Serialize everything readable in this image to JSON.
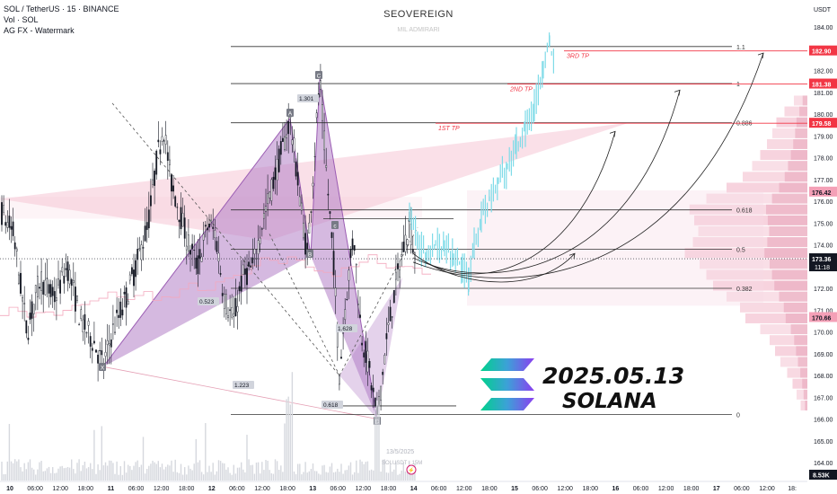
{
  "legend": {
    "symbol_line": "SOL / TetherUS · 15 · BINANCE",
    "volume_line": "Vol · SOL",
    "indicator_line": "AG FX - Watermark"
  },
  "watermark": {
    "brand": "SEOVEREIGN",
    "sub": "MIL ADMIRARI"
  },
  "overlay": {
    "date": "2025.05.13",
    "name": "SOLANA"
  },
  "colors": {
    "candle": "#131722",
    "projection": "#7fdbe8",
    "pattern_fill": "#b27fc6",
    "target_line": "#f23645",
    "profile": "#f4c4d3",
    "price_tag": "#131722"
  },
  "chart_data": {
    "type": "candlestick",
    "y_axis": {
      "unit": "USDT",
      "ticks": [
        184.0,
        183.0,
        182.0,
        181.0,
        180.0,
        179.0,
        178.0,
        177.0,
        176.0,
        175.0,
        174.0,
        173.0,
        172.0,
        171.0,
        170.0,
        169.0,
        168.0,
        167.0,
        166.0,
        165.0,
        164.0
      ],
      "range": [
        163.4,
        184.5
      ]
    },
    "x_axis": {
      "ticks": [
        "10",
        "06:00",
        "12:00",
        "18:00",
        "11",
        "06:00",
        "12:00",
        "18:00",
        "12",
        "06:00",
        "12:00",
        "18:00",
        "13",
        "06:00",
        "12:00",
        "18:00",
        "14",
        "06:00",
        "12:00",
        "18:00",
        "15",
        "06:00",
        "12:00",
        "18:00",
        "16",
        "06:00",
        "12:00",
        "18:00",
        "17",
        "06:00",
        "12:00",
        "18:"
      ],
      "range_label": "13/5/2025"
    },
    "fib_levels": [
      {
        "label": "1.1",
        "value": 183.1
      },
      {
        "label": "1",
        "value": 181.4
      },
      {
        "label": "0.886",
        "value": 179.6
      },
      {
        "label": "0.618",
        "value": 175.6
      },
      {
        "label": "0.5",
        "value": 173.8
      },
      {
        "label": "0.382",
        "value": 172.0
      },
      {
        "label": "0",
        "value": 166.2
      }
    ],
    "targets": [
      {
        "label": "3RD TP",
        "value": 182.9
      },
      {
        "label": "2ND TP",
        "value": 181.38
      },
      {
        "label": "1ST TP",
        "value": 179.58
      }
    ],
    "price_tags": [
      {
        "label": "182.90",
        "value": 182.9,
        "kind": "target"
      },
      {
        "label": "181.38",
        "value": 181.38,
        "kind": "target"
      },
      {
        "label": "179.58",
        "value": 179.58,
        "kind": "target"
      },
      {
        "label": "176.42",
        "value": 176.42,
        "kind": "profile"
      },
      {
        "label": "173.36",
        "value": 173.36,
        "kind": "last",
        "timer": "11:18"
      },
      {
        "label": "170.66",
        "value": 170.66,
        "kind": "profile"
      }
    ],
    "volume_tag": "8.53K",
    "pattern_points": [
      {
        "label": "X",
        "value": 168.4
      },
      {
        "label": "A",
        "value": 179.8
      },
      {
        "label": "B",
        "value": 173.5
      },
      {
        "label": "C",
        "value": 181.6
      },
      {
        "label": "D",
        "value": 166.0
      }
    ],
    "ratio_labels": [
      "1.301",
      "0.523",
      "0.618",
      "1.223",
      "1.628"
    ],
    "pattern_letters": [
      "X",
      "A",
      "B",
      "C",
      "D",
      "c"
    ],
    "symbol_stub": "SOLUSDT · 15M"
  }
}
